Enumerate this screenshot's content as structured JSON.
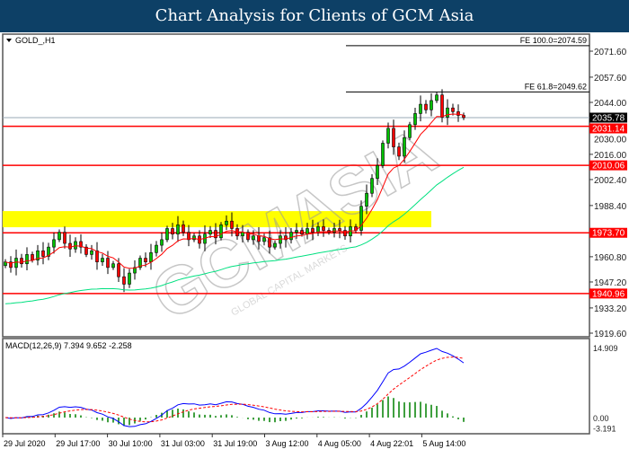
{
  "title": "Chart Analysis for Clients of GCM Asia",
  "chart_data": {
    "type": "candlestick",
    "symbol_label": "GOLD_,H1",
    "price_ticks": [
      2071.6,
      2057.6,
      2044.0,
      2030.0,
      2016.0,
      2002.4,
      1988.4,
      1960.8,
      1947.2,
      1933.2,
      1919.6
    ],
    "price_range": [
      1919.6,
      2071.6
    ],
    "current_price": 2035.78,
    "levels": [
      {
        "value": 2031.14,
        "label": "2031.14"
      },
      {
        "value": 2010.06,
        "label": "2010.06"
      },
      {
        "value": 1973.7,
        "label": "1973.70"
      },
      {
        "value": 1940.96,
        "label": "1940.96"
      }
    ],
    "fibo": [
      {
        "value": 2074.59,
        "label": "FE 100.0=2074.59"
      },
      {
        "value": 2049.62,
        "label": "FE 61.8=2049.62"
      }
    ],
    "zone": [
      1976.7,
      1985.4
    ],
    "closes": [
      1958,
      1955,
      1960,
      1957,
      1962,
      1959,
      1964,
      1961,
      1966,
      1970,
      1974,
      1968,
      1965,
      1969,
      1966,
      1962,
      1964,
      1958,
      1960,
      1955,
      1957,
      1950,
      1946,
      1952,
      1955,
      1960,
      1958,
      1963,
      1967,
      1970,
      1976,
      1973,
      1978,
      1974,
      1970,
      1972,
      1968,
      1973,
      1975,
      1971,
      1978,
      1980,
      1976,
      1972,
      1974,
      1970,
      1972,
      1969,
      1971,
      1966,
      1968,
      1972,
      1970,
      1974,
      1975,
      1973,
      1976,
      1974,
      1977,
      1975,
      1974,
      1976,
      1975,
      1972,
      1977,
      1975,
      1988,
      1995,
      2003,
      2010,
      2022,
      2030,
      2020,
      2015,
      2025,
      2032,
      2038,
      2043,
      2040,
      2045,
      2048,
      2036,
      2041,
      2039,
      2037,
      2035.78
    ],
    "macd": {
      "label": "MACD(12,26,9) 7.394 9.652 -2.258",
      "ticks": [
        "14.909",
        "0.00",
        "-3.191"
      ],
      "range": [
        -3.191,
        14.909
      ]
    },
    "time_labels": [
      "29 Jul 2020",
      "29 Jul 17:00",
      "30 Jul 10:00",
      "31 Jul 03:00",
      "31 Jul 19:00",
      "3 Aug 12:00",
      "4 Aug 05:00",
      "4 Aug 22:01",
      "5 Aug 14:00"
    ],
    "colors": {
      "bull": "#00c000",
      "bear": "#ff0000",
      "ma_fast": "#ff0000",
      "ma_slow": "#00e080",
      "macd": "#0000ff",
      "signal": "#ff0000",
      "hist": "#008000",
      "zone": "#ffff00",
      "title_bg": "#0d4066"
    }
  },
  "watermark": {
    "logo": "GCMASIA",
    "sub": "GLOBAL CAPITAL MARKETS"
  }
}
